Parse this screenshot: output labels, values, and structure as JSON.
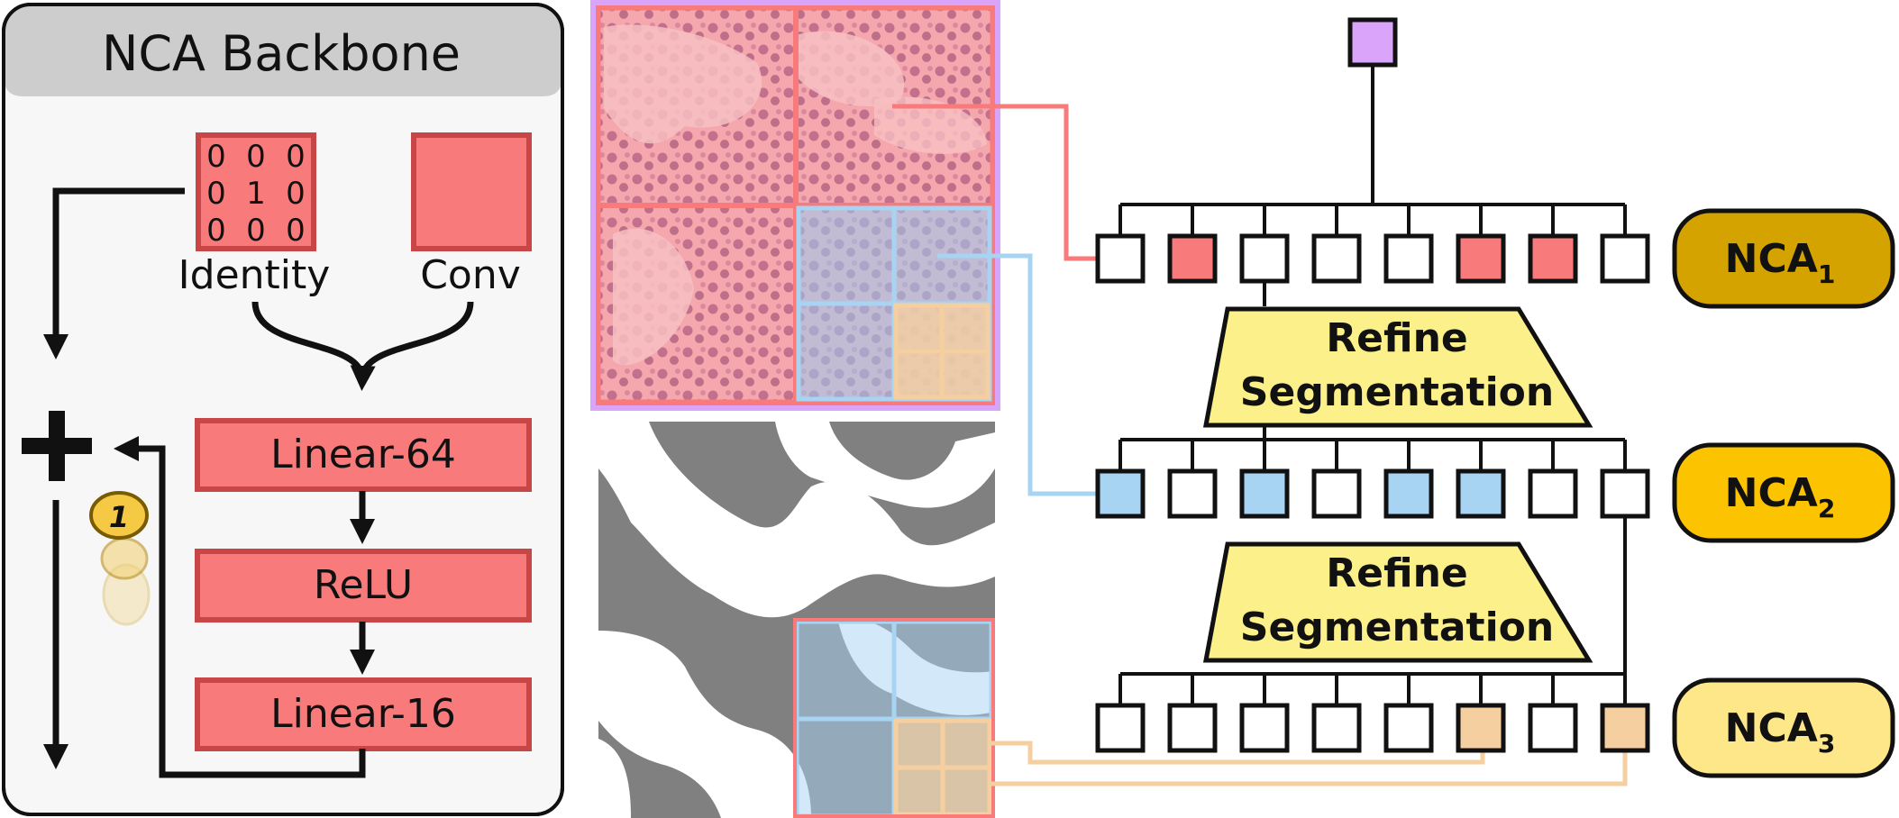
{
  "backbone": {
    "title": "NCA Backbone",
    "identity_label": "Identity",
    "identity_matrix": [
      [
        "0",
        "0",
        "0"
      ],
      [
        "0",
        "1",
        "0"
      ],
      [
        "0",
        "0",
        "0"
      ]
    ],
    "conv_label": "Conv",
    "layers": [
      "Linear-64",
      "ReLU",
      "Linear-16"
    ],
    "plus_symbol": "+",
    "coin_label": "1"
  },
  "tree": {
    "levels": [
      {
        "label": "NCA",
        "subscript": "1",
        "color": "#d4a300",
        "node_states": [
          "empty",
          "red",
          "empty",
          "empty",
          "empty",
          "red",
          "red",
          "empty"
        ]
      },
      {
        "label": "NCA",
        "subscript": "2",
        "color": "#fbc300",
        "node_states": [
          "blue",
          "empty",
          "blue",
          "empty",
          "blue",
          "blue",
          "empty",
          "empty"
        ]
      },
      {
        "label": "NCA",
        "subscript": "3",
        "color": "#fde789",
        "node_states": [
          "empty",
          "empty",
          "empty",
          "empty",
          "empty",
          "tan",
          "empty",
          "tan"
        ]
      }
    ],
    "refine_lines": [
      "Refine",
      "Segmentation"
    ]
  },
  "colors": {
    "red": "#f87a7a",
    "red_border": "#c84646",
    "blue": "#a8d4f4",
    "tan": "#f6cfa0",
    "purple": "#d9a4fa",
    "refine_fill": "#fcf08a",
    "panel_bg": "#f7f7f7",
    "header_bg": "#cdcdcd"
  }
}
